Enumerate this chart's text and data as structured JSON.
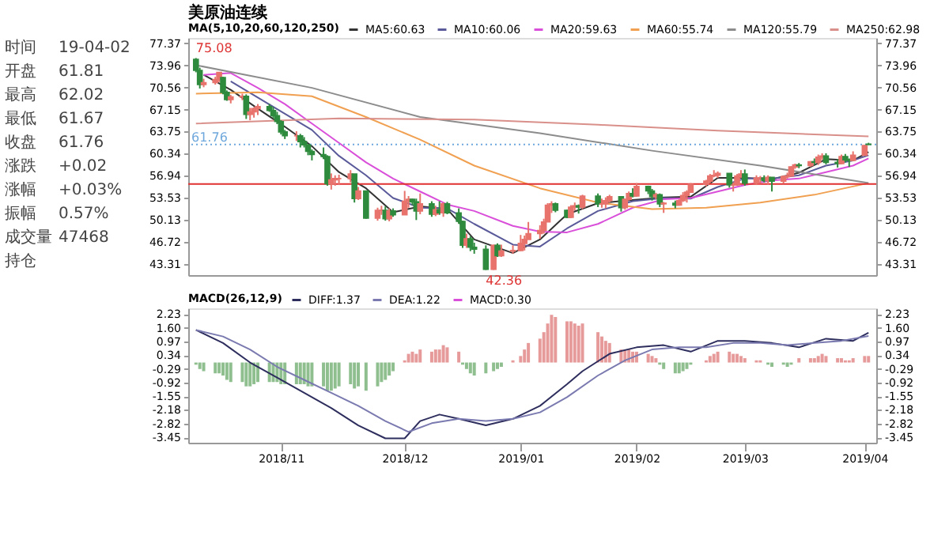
{
  "chart_data": [
    {
      "type": "candlestick",
      "title": "美原油连续",
      "legend_title": "MA(5,10,20,60,120,250)",
      "legend": "top",
      "tick_labels": "y",
      "x": [
        "2018-10-10",
        "2018-10-11",
        "2018-10-12",
        "2018-10-15",
        "2018-10-16",
        "2018-10-17",
        "2018-10-18",
        "2018-10-19",
        "2018-10-22",
        "2018-10-23",
        "2018-10-24",
        "2018-10-25",
        "2018-10-26",
        "2018-10-29",
        "2018-10-30",
        "2018-10-31",
        "2018-11-01",
        "2018-11-02",
        "2018-11-05",
        "2018-11-06",
        "2018-11-07",
        "2018-11-08",
        "2018-11-09",
        "2018-11-12",
        "2018-11-13",
        "2018-11-14",
        "2018-11-15",
        "2018-11-16",
        "2018-11-19",
        "2018-11-20",
        "2018-11-21",
        "2018-11-23",
        "2018-11-26",
        "2018-11-27",
        "2018-11-28",
        "2018-11-29",
        "2018-11-30",
        "2018-12-03",
        "2018-12-04",
        "2018-12-05",
        "2018-12-06",
        "2018-12-07",
        "2018-12-10",
        "2018-12-11",
        "2018-12-12",
        "2018-12-13",
        "2018-12-14",
        "2018-12-17",
        "2018-12-18",
        "2018-12-19",
        "2018-12-20",
        "2018-12-21",
        "2018-12-24",
        "2018-12-26",
        "2018-12-27",
        "2018-12-28",
        "2018-12-31",
        "2019-01-02",
        "2019-01-03",
        "2019-01-04",
        "2019-01-07",
        "2019-01-08",
        "2019-01-09",
        "2019-01-10",
        "2019-01-11",
        "2019-01-14",
        "2019-01-15",
        "2019-01-16",
        "2019-01-17",
        "2019-01-18",
        "2019-01-22",
        "2019-01-23",
        "2019-01-24",
        "2019-01-25",
        "2019-01-28",
        "2019-01-29",
        "2019-01-30",
        "2019-01-31",
        "2019-02-01",
        "2019-02-04",
        "2019-02-05",
        "2019-02-06",
        "2019-02-07",
        "2019-02-08",
        "2019-02-11",
        "2019-02-12",
        "2019-02-13",
        "2019-02-14",
        "2019-02-15",
        "2019-02-19",
        "2019-02-20",
        "2019-02-21",
        "2019-02-22",
        "2019-02-25",
        "2019-02-26",
        "2019-02-27",
        "2019-02-28",
        "2019-03-01",
        "2019-03-04",
        "2019-03-05",
        "2019-03-06",
        "2019-03-07",
        "2019-03-08",
        "2019-03-11",
        "2019-03-12",
        "2019-03-13",
        "2019-03-14",
        "2019-03-15",
        "2019-03-18",
        "2019-03-19",
        "2019-03-20",
        "2019-03-21",
        "2019-03-22",
        "2019-03-25",
        "2019-03-26",
        "2019-03-27",
        "2019-03-28",
        "2019-03-29",
        "2019-04-01",
        "2019-04-02"
      ],
      "ohlc": [
        [
          74.9,
          75.1,
          72.9,
          73.2
        ],
        [
          73.2,
          73.6,
          70.4,
          71.0
        ],
        [
          71.0,
          71.9,
          70.6,
          71.3
        ],
        [
          71.3,
          72.2,
          71.0,
          71.8
        ],
        [
          71.8,
          72.9,
          71.4,
          72.9
        ],
        [
          72.1,
          72.2,
          69.5,
          69.8
        ],
        [
          69.8,
          70.1,
          68.5,
          68.7
        ],
        [
          68.7,
          69.4,
          68.1,
          69.1
        ],
        [
          69.1,
          69.6,
          68.6,
          69.2
        ],
        [
          69.2,
          69.5,
          65.7,
          66.4
        ],
        [
          66.4,
          67.4,
          65.5,
          66.8
        ],
        [
          66.8,
          67.5,
          65.9,
          67.3
        ],
        [
          67.3,
          68.0,
          66.3,
          67.6
        ],
        [
          67.6,
          68.0,
          66.8,
          67.0
        ],
        [
          67.0,
          67.5,
          65.8,
          66.2
        ],
        [
          66.2,
          66.8,
          64.9,
          65.3
        ],
        [
          65.3,
          65.5,
          63.3,
          63.7
        ],
        [
          63.7,
          64.0,
          62.6,
          63.1
        ],
        [
          63.1,
          63.8,
          62.3,
          63.1
        ],
        [
          63.1,
          63.4,
          61.3,
          62.2
        ],
        [
          62.2,
          62.9,
          61.3,
          61.7
        ],
        [
          61.7,
          61.8,
          60.1,
          60.7
        ],
        [
          60.7,
          61.0,
          59.3,
          60.2
        ],
        [
          60.2,
          61.3,
          59.5,
          59.9
        ],
        [
          59.9,
          60.1,
          55.4,
          55.7
        ],
        [
          55.7,
          57.3,
          54.8,
          56.3
        ],
        [
          56.3,
          57.0,
          55.4,
          56.5
        ],
        [
          56.5,
          57.1,
          55.5,
          56.5
        ],
        [
          56.5,
          57.8,
          55.9,
          57.2
        ],
        [
          57.2,
          57.2,
          52.8,
          53.4
        ],
        [
          53.4,
          55.2,
          53.2,
          54.6
        ],
        [
          54.6,
          54.6,
          50.3,
          50.4
        ],
        [
          50.4,
          52.0,
          50.0,
          51.6
        ],
        [
          51.6,
          52.3,
          50.9,
          51.6
        ],
        [
          51.6,
          52.2,
          50.0,
          50.3
        ],
        [
          50.3,
          51.9,
          49.9,
          51.5
        ],
        [
          51.5,
          51.9,
          50.6,
          50.9
        ],
        [
          50.9,
          54.6,
          50.9,
          53.0
        ],
        [
          53.0,
          53.8,
          52.0,
          53.3
        ],
        [
          53.3,
          53.4,
          52.4,
          52.9
        ],
        [
          52.9,
          53.4,
          50.1,
          51.5
        ],
        [
          51.5,
          54.2,
          51.0,
          52.6
        ],
        [
          52.6,
          53.0,
          50.6,
          51.0
        ],
        [
          51.0,
          52.3,
          50.7,
          51.7
        ],
        [
          51.7,
          53.0,
          50.9,
          51.2
        ],
        [
          51.2,
          52.8,
          50.6,
          52.6
        ],
        [
          52.6,
          52.9,
          51.0,
          51.2
        ],
        [
          51.2,
          51.9,
          49.5,
          49.9
        ],
        [
          49.9,
          50.0,
          45.8,
          46.2
        ],
        [
          46.2,
          48.0,
          45.8,
          47.2
        ],
        [
          47.2,
          47.6,
          45.3,
          45.9
        ],
        [
          45.9,
          46.6,
          44.9,
          45.6
        ],
        [
          45.6,
          46.2,
          42.4,
          42.5
        ],
        [
          42.5,
          46.3,
          42.4,
          46.2
        ],
        [
          46.2,
          46.5,
          44.4,
          44.6
        ],
        [
          44.6,
          46.3,
          44.4,
          45.3
        ],
        [
          45.3,
          46.2,
          44.9,
          45.4
        ],
        [
          45.4,
          47.8,
          45.3,
          46.5
        ],
        [
          46.5,
          47.7,
          45.4,
          47.1
        ],
        [
          47.1,
          49.8,
          47.1,
          48.0
        ],
        [
          48.0,
          49.3,
          47.2,
          48.5
        ],
        [
          48.5,
          50.3,
          48.0,
          49.8
        ],
        [
          49.8,
          52.7,
          49.8,
          52.4
        ],
        [
          52.4,
          53.0,
          51.2,
          52.6
        ],
        [
          52.6,
          52.8,
          51.3,
          51.6
        ],
        [
          51.6,
          51.7,
          50.4,
          50.5
        ],
        [
          50.5,
          52.4,
          50.4,
          52.1
        ],
        [
          52.1,
          52.8,
          51.6,
          52.3
        ],
        [
          52.3,
          52.5,
          51.1,
          52.1
        ],
        [
          52.1,
          54.0,
          51.8,
          53.8
        ],
        [
          53.8,
          54.2,
          52.1,
          52.6
        ],
        [
          52.6,
          53.4,
          52.0,
          52.6
        ],
        [
          52.6,
          53.6,
          51.9,
          53.1
        ],
        [
          53.1,
          54.0,
          52.8,
          53.7
        ],
        [
          53.7,
          53.8,
          51.4,
          52.0
        ],
        [
          52.0,
          53.4,
          51.7,
          53.3
        ],
        [
          53.3,
          54.5,
          53.1,
          54.2
        ],
        [
          54.2,
          55.0,
          53.6,
          53.8
        ],
        [
          53.8,
          55.8,
          53.7,
          55.3
        ],
        [
          55.3,
          55.4,
          54.1,
          54.6
        ],
        [
          54.6,
          54.9,
          53.1,
          53.7
        ],
        [
          53.7,
          54.3,
          53.3,
          54.0
        ],
        [
          54.0,
          54.2,
          52.1,
          52.6
        ],
        [
          52.6,
          52.9,
          51.2,
          52.7
        ],
        [
          52.7,
          53.1,
          51.9,
          52.4
        ],
        [
          52.4,
          53.3,
          52.3,
          53.1
        ],
        [
          53.1,
          54.4,
          52.9,
          53.9
        ],
        [
          53.9,
          54.7,
          52.8,
          54.4
        ],
        [
          54.4,
          55.8,
          54.3,
          55.6
        ],
        [
          55.6,
          56.3,
          55.3,
          56.1
        ],
        [
          56.1,
          57.2,
          55.8,
          56.9
        ],
        [
          56.9,
          57.8,
          56.7,
          57.0
        ],
        [
          57.0,
          57.6,
          56.6,
          57.3
        ],
        [
          57.3,
          57.3,
          55.1,
          55.5
        ],
        [
          55.5,
          55.9,
          54.5,
          55.5
        ],
        [
          55.5,
          57.2,
          55.4,
          56.9
        ],
        [
          56.9,
          57.8,
          56.6,
          57.2
        ],
        [
          57.2,
          57.9,
          55.4,
          55.8
        ],
        [
          55.8,
          57.0,
          55.5,
          56.6
        ],
        [
          56.6,
          56.9,
          55.7,
          56.6
        ],
        [
          56.6,
          57.0,
          55.9,
          56.2
        ],
        [
          56.2,
          57.0,
          55.6,
          56.7
        ],
        [
          56.7,
          56.7,
          54.5,
          56.1
        ],
        [
          56.1,
          57.0,
          55.7,
          56.8
        ],
        [
          56.8,
          57.4,
          56.5,
          56.9
        ],
        [
          56.9,
          58.4,
          56.8,
          58.3
        ],
        [
          58.3,
          58.8,
          58.0,
          58.6
        ],
        [
          58.6,
          58.9,
          58.1,
          58.5
        ],
        [
          58.5,
          59.2,
          58.3,
          59.1
        ],
        [
          59.1,
          59.6,
          58.6,
          59.0
        ],
        [
          59.0,
          60.2,
          58.6,
          59.8
        ],
        [
          59.8,
          60.4,
          59.4,
          60.0
        ],
        [
          60.0,
          60.4,
          58.7,
          59.0
        ],
        [
          59.0,
          59.5,
          58.2,
          58.8
        ],
        [
          58.8,
          60.2,
          58.7,
          59.9
        ],
        [
          59.9,
          60.3,
          59.0,
          59.4
        ],
        [
          59.4,
          59.6,
          58.3,
          59.3
        ],
        [
          59.3,
          60.7,
          59.2,
          60.1
        ],
        [
          60.1,
          61.7,
          60.1,
          61.6
        ],
        [
          61.81,
          62.02,
          61.67,
          61.76
        ]
      ],
      "colors": [
        "#2e8b3e",
        "#2e8b3e",
        "#e8736c",
        "#e8736c",
        "#e8736c",
        "#2e8b3e",
        "#2e8b3e",
        "#e8736c",
        "#e8736c",
        "#2e8b3e",
        "#e8736c",
        "#e8736c",
        "#e8736c",
        "#2e8b3e",
        "#2e8b3e",
        "#2e8b3e",
        "#2e8b3e",
        "#2e8b3e",
        "#e8736c",
        "#2e8b3e",
        "#2e8b3e",
        "#2e8b3e",
        "#2e8b3e",
        "#2e8b3e",
        "#2e8b3e",
        "#e8736c",
        "#e8736c",
        "#e8736c",
        "#e8736c",
        "#2e8b3e",
        "#e8736c",
        "#2e8b3e",
        "#e8736c",
        "#e8736c",
        "#2e8b3e",
        "#e8736c",
        "#2e8b3e",
        "#e8736c",
        "#e8736c",
        "#2e8b3e",
        "#2e8b3e",
        "#e8736c",
        "#2e8b3e",
        "#e8736c",
        "#2e8b3e",
        "#e8736c",
        "#2e8b3e",
        "#2e8b3e",
        "#2e8b3e",
        "#e8736c",
        "#2e8b3e",
        "#2e8b3e",
        "#2e8b3e",
        "#e8736c",
        "#2e8b3e",
        "#e8736c",
        "#e8736c",
        "#e8736c",
        "#e8736c",
        "#e8736c",
        "#e8736c",
        "#e8736c",
        "#e8736c",
        "#e8736c",
        "#2e8b3e",
        "#2e8b3e",
        "#e8736c",
        "#e8736c",
        "#2e8b3e",
        "#e8736c",
        "#2e8b3e",
        "#e8736c",
        "#e8736c",
        "#e8736c",
        "#2e8b3e",
        "#e8736c",
        "#e8736c",
        "#2e8b3e",
        "#e8736c",
        "#2e8b3e",
        "#2e8b3e",
        "#e8736c",
        "#2e8b3e",
        "#e8736c",
        "#2e8b3e",
        "#e8736c",
        "#e8736c",
        "#e8736c",
        "#e8736c",
        "#e8736c",
        "#e8736c",
        "#e8736c",
        "#e8736c",
        "#2e8b3e",
        "#e8736c",
        "#e8736c",
        "#e8736c",
        "#2e8b3e",
        "#e8736c",
        "#e8736c",
        "#2e8b3e",
        "#e8736c",
        "#2e8b3e",
        "#e8736c",
        "#e8736c",
        "#e8736c",
        "#e8736c",
        "#2e8b3e",
        "#e8736c",
        "#2e8b3e",
        "#e8736c",
        "#e8736c",
        "#2e8b3e",
        "#2e8b3e",
        "#e8736c",
        "#2e8b3e",
        "#2e8b3e",
        "#e8736c",
        "#e8736c",
        "#2e8b3e"
      ],
      "series": [
        {
          "name": "MA5:60.63",
          "type": "line",
          "color": "#333333",
          "x": [
            "2018-10-12",
            "2018-10-19",
            "2018-10-26",
            "2018-11-02",
            "2018-11-09",
            "2018-11-16",
            "2018-11-23",
            "2018-11-30",
            "2018-12-07",
            "2018-12-14",
            "2018-12-21",
            "2018-12-31",
            "2019-01-07",
            "2019-01-14",
            "2019-01-22",
            "2019-01-31",
            "2019-02-08",
            "2019-02-15",
            "2019-02-22",
            "2019-03-01",
            "2019-03-08",
            "2019-03-15",
            "2019-03-22",
            "2019-03-29",
            "2019-04-02"
          ],
          "values": [
            72.5,
            70.2,
            67.3,
            64.5,
            61.5,
            57.5,
            55.0,
            51.3,
            52.2,
            51.8,
            47.1,
            45.0,
            47.1,
            51.0,
            52.7,
            53.2,
            53.6,
            53.7,
            56.6,
            56.6,
            56.4,
            57.4,
            59.5,
            59.3,
            60.6
          ]
        },
        {
          "name": "MA10:60.06",
          "type": "line",
          "color": "#5a5a9a",
          "x": [
            "2018-10-19",
            "2018-10-26",
            "2018-11-02",
            "2018-11-09",
            "2018-11-16",
            "2018-11-23",
            "2018-11-30",
            "2018-12-07",
            "2018-12-14",
            "2018-12-21",
            "2018-12-31",
            "2019-01-07",
            "2019-01-14",
            "2019-01-22",
            "2019-01-31",
            "2019-02-08",
            "2019-02-15",
            "2019-02-22",
            "2019-03-01",
            "2019-03-08",
            "2019-03-15",
            "2019-03-22",
            "2019-03-29",
            "2019-04-02"
          ],
          "values": [
            71.5,
            69.0,
            66.5,
            64.0,
            60.0,
            57.0,
            53.5,
            52.0,
            51.9,
            49.5,
            46.3,
            46.0,
            48.8,
            51.5,
            53.0,
            53.5,
            53.4,
            55.2,
            56.5,
            56.5,
            57.0,
            58.5,
            59.3,
            60.1
          ]
        },
        {
          "name": "MA20:59.63",
          "type": "line",
          "color": "#d94fd9",
          "x": [
            "2018-10-12",
            "2018-10-19",
            "2018-10-26",
            "2018-11-02",
            "2018-11-09",
            "2018-11-16",
            "2018-11-23",
            "2018-11-30",
            "2018-12-07",
            "2018-12-14",
            "2018-12-21",
            "2018-12-31",
            "2019-01-07",
            "2019-01-14",
            "2019-01-22",
            "2019-01-31",
            "2019-02-08",
            "2019-02-15",
            "2019-02-22",
            "2019-03-01",
            "2019-03-08",
            "2019-03-15",
            "2019-03-22",
            "2019-03-29",
            "2019-04-02"
          ],
          "values": [
            72.5,
            72.8,
            70.5,
            68.0,
            65.0,
            62.0,
            59.0,
            56.5,
            54.5,
            52.5,
            51.5,
            49.2,
            48.3,
            48.2,
            49.5,
            52.0,
            53.3,
            53.5,
            54.5,
            55.5,
            56.2,
            56.5,
            57.5,
            58.5,
            59.6
          ]
        },
        {
          "name": "MA60:55.74",
          "type": "line",
          "color": "#f0a050",
          "x": [
            "2018-10-10",
            "2018-10-26",
            "2018-11-09",
            "2018-11-23",
            "2018-12-07",
            "2018-12-21",
            "2019-01-07",
            "2019-01-22",
            "2019-02-05",
            "2019-02-19",
            "2019-03-05",
            "2019-03-19",
            "2019-04-02"
          ],
          "values": [
            69.6,
            69.8,
            69.2,
            66.0,
            62.5,
            58.5,
            55.0,
            52.8,
            51.8,
            52.0,
            52.8,
            54.0,
            55.8
          ]
        },
        {
          "name": "MA120:55.79",
          "type": "line",
          "color": "#8c8c8c",
          "x": [
            "2018-10-10",
            "2018-11-09",
            "2018-12-07",
            "2019-01-07",
            "2019-02-05",
            "2019-03-05",
            "2019-04-02"
          ],
          "values": [
            74.0,
            70.5,
            66.0,
            63.5,
            60.8,
            58.5,
            55.8
          ]
        },
        {
          "name": "MA250:62.98",
          "type": "line",
          "color": "#d9908a",
          "x": [
            "2018-10-10",
            "2018-11-16",
            "2018-12-21",
            "2019-01-22",
            "2019-02-22",
            "2019-04-02"
          ],
          "values": [
            65.0,
            65.8,
            65.6,
            64.8,
            63.9,
            63.0
          ]
        }
      ],
      "xlim": [
        "2018-10-08",
        "2019-04-04"
      ],
      "ylim": [
        41.6,
        78.2
      ],
      "yticks": [
        43.31,
        46.72,
        50.13,
        53.53,
        56.94,
        60.34,
        63.75,
        67.15,
        70.56,
        73.96,
        77.37
      ],
      "y2lim": [
        41.6,
        78.2
      ],
      "y2ticks": [
        43.31,
        46.72,
        50.13,
        53.53,
        56.94,
        60.34,
        63.75,
        67.15,
        70.56,
        73.96,
        77.37
      ],
      "ref_lines": [
        {
          "axis": "y",
          "value": 55.66,
          "color": "#e03030",
          "line_style": "solid"
        },
        {
          "axis": "y",
          "value": 61.76,
          "label": "61.76",
          "color": "#6fa8dc",
          "line_style": "dotted"
        }
      ],
      "annotations": [
        "时间",
        "19-04-02",
        "开盘",
        "61.81",
        "最高",
        "62.02",
        "最低",
        "61.67",
        "收盘",
        "61.76",
        "涨跌",
        "+0.02",
        "涨幅",
        "+0.03%",
        "振幅",
        "0.57%",
        "成交量",
        "47468",
        "持仓",
        {
          "text": "75.08",
          "x": "2018-10-10",
          "y": 75.08
        },
        {
          "text": "42.36",
          "x": "2018-12-24",
          "y": 42.36
        }
      ]
    },
    {
      "type": "bar",
      "legend_title": "MACD(26,12,9)",
      "legend": "top",
      "x": [
        "2018-10-10",
        "2018-10-11",
        "2018-10-12",
        "2018-10-15",
        "2018-10-16",
        "2018-10-17",
        "2018-10-18",
        "2018-10-19",
        "2018-10-22",
        "2018-10-23",
        "2018-10-24",
        "2018-10-25",
        "2018-10-26",
        "2018-10-29",
        "2018-10-30",
        "2018-10-31",
        "2018-11-01",
        "2018-11-02",
        "2018-11-05",
        "2018-11-06",
        "2018-11-07",
        "2018-11-08",
        "2018-11-09",
        "2018-11-12",
        "2018-11-13",
        "2018-11-14",
        "2018-11-15",
        "2018-11-16",
        "2018-11-19",
        "2018-11-20",
        "2018-11-21",
        "2018-11-23",
        "2018-11-26",
        "2018-11-27",
        "2018-11-28",
        "2018-11-29",
        "2018-11-30",
        "2018-12-03",
        "2018-12-04",
        "2018-12-05",
        "2018-12-06",
        "2018-12-07",
        "2018-12-10",
        "2018-12-11",
        "2018-12-12",
        "2018-12-13",
        "2018-12-14",
        "2018-12-17",
        "2018-12-18",
        "2018-12-19",
        "2018-12-20",
        "2018-12-21",
        "2018-12-24",
        "2018-12-26",
        "2018-12-27",
        "2018-12-28",
        "2018-12-31",
        "2019-01-02",
        "2019-01-03",
        "2019-01-04",
        "2019-01-07",
        "2019-01-08",
        "2019-01-09",
        "2019-01-10",
        "2019-01-11",
        "2019-01-14",
        "2019-01-15",
        "2019-01-16",
        "2019-01-17",
        "2019-01-18",
        "2019-01-22",
        "2019-01-23",
        "2019-01-24",
        "2019-01-25",
        "2019-01-28",
        "2019-01-29",
        "2019-01-30",
        "2019-01-31",
        "2019-02-01",
        "2019-02-04",
        "2019-02-05",
        "2019-02-06",
        "2019-02-07",
        "2019-02-08",
        "2019-02-11",
        "2019-02-12",
        "2019-02-13",
        "2019-02-14",
        "2019-02-15",
        "2019-02-19",
        "2019-02-20",
        "2019-02-21",
        "2019-02-22",
        "2019-02-25",
        "2019-02-26",
        "2019-02-27",
        "2019-02-28",
        "2019-03-01",
        "2019-03-04",
        "2019-03-05",
        "2019-03-06",
        "2019-03-07",
        "2019-03-08",
        "2019-03-11",
        "2019-03-12",
        "2019-03-13",
        "2019-03-14",
        "2019-03-15",
        "2019-03-18",
        "2019-03-19",
        "2019-03-20",
        "2019-03-21",
        "2019-03-22",
        "2019-03-25",
        "2019-03-26",
        "2019-03-27",
        "2019-03-28",
        "2019-03-29",
        "2019-04-01",
        "2019-04-02"
      ],
      "series": [
        {
          "name": "DIFF:1.37",
          "type": "line",
          "color": "#2e2e5e",
          "x": [
            "2018-10-10",
            "2018-10-17",
            "2018-10-24",
            "2018-10-31",
            "2018-11-07",
            "2018-11-14",
            "2018-11-21",
            "2018-11-28",
            "2018-12-03",
            "2018-12-07",
            "2018-12-12",
            "2018-12-17",
            "2018-12-24",
            "2018-12-31",
            "2019-01-07",
            "2019-01-14",
            "2019-01-18",
            "2019-01-25",
            "2019-02-01",
            "2019-02-08",
            "2019-02-15",
            "2019-02-22",
            "2019-03-01",
            "2019-03-08",
            "2019-03-15",
            "2019-03-22",
            "2019-03-29",
            "2019-04-02"
          ],
          "values": [
            1.5,
            0.9,
            0.0,
            -0.7,
            -1.4,
            -2.1,
            -2.9,
            -3.5,
            -3.5,
            -2.7,
            -2.4,
            -2.6,
            -2.9,
            -2.6,
            -2.0,
            -1.0,
            -0.4,
            0.4,
            0.7,
            0.8,
            0.5,
            1.0,
            1.0,
            0.9,
            0.7,
            1.1,
            1.0,
            1.37
          ]
        },
        {
          "name": "DEA:1.22",
          "type": "line",
          "color": "#7a7ab0",
          "x": [
            "2018-10-10",
            "2018-10-17",
            "2018-10-24",
            "2018-10-31",
            "2018-11-07",
            "2018-11-14",
            "2018-11-21",
            "2018-11-28",
            "2018-12-04",
            "2018-12-10",
            "2018-12-17",
            "2018-12-24",
            "2018-12-31",
            "2019-01-07",
            "2019-01-14",
            "2019-01-22",
            "2019-01-29",
            "2019-02-05",
            "2019-02-12",
            "2019-02-19",
            "2019-02-26",
            "2019-03-05",
            "2019-03-12",
            "2019-03-19",
            "2019-03-26",
            "2019-04-02"
          ],
          "values": [
            1.5,
            1.2,
            0.6,
            -0.2,
            -0.8,
            -1.4,
            -2.0,
            -2.7,
            -3.2,
            -2.8,
            -2.6,
            -2.7,
            -2.6,
            -2.3,
            -1.6,
            -0.6,
            0.1,
            0.6,
            0.7,
            0.7,
            0.9,
            0.9,
            0.8,
            0.9,
            1.0,
            1.22
          ]
        },
        {
          "name": "MACD:0.30",
          "type": "bar",
          "color": "#d94fd9",
          "values": [
            -0.1,
            -0.3,
            -0.4,
            -0.5,
            -0.5,
            -0.6,
            -0.8,
            -0.9,
            -0.9,
            -1.1,
            -1.1,
            -1.0,
            -0.9,
            -0.9,
            -0.9,
            -0.9,
            -1.0,
            -1.0,
            -1.0,
            -1.0,
            -1.0,
            -1.1,
            -1.1,
            -1.1,
            -1.3,
            -1.3,
            -1.2,
            -1.1,
            -1.0,
            -1.2,
            -1.1,
            -1.3,
            -1.1,
            -0.9,
            -0.8,
            -0.6,
            -0.4,
            0.1,
            0.4,
            0.5,
            0.4,
            0.6,
            0.5,
            0.6,
            0.6,
            0.8,
            0.7,
            0.5,
            -0.1,
            -0.3,
            -0.5,
            -0.6,
            -0.5,
            -0.4,
            -0.3,
            -0.2,
            0.1,
            0.3,
            0.6,
            0.9,
            1.1,
            1.4,
            1.8,
            2.2,
            2.1,
            1.9,
            1.9,
            1.8,
            1.7,
            1.8,
            1.4,
            1.2,
            1.0,
            0.9,
            0.6,
            0.6,
            0.6,
            0.5,
            0.5,
            0.4,
            0.3,
            0.2,
            -0.1,
            -0.3,
            -0.5,
            -0.5,
            -0.4,
            -0.3,
            -0.1,
            0.1,
            0.3,
            0.4,
            0.5,
            0.5,
            0.4,
            0.4,
            0.3,
            0.2,
            0.1,
            0.1,
            0.0,
            -0.1,
            -0.2,
            -0.1,
            -0.2,
            -0.1,
            0.0,
            0.2,
            0.2,
            0.2,
            0.3,
            0.4,
            0.3,
            0.2,
            0.2,
            0.1,
            0.1,
            0.2,
            0.3,
            0.3
          ],
          "colors": [
            "#8fbf8f",
            "#8fbf8f",
            "#8fbf8f",
            "#8fbf8f",
            "#8fbf8f",
            "#8fbf8f",
            "#8fbf8f",
            "#8fbf8f",
            "#8fbf8f",
            "#8fbf8f",
            "#8fbf8f",
            "#8fbf8f",
            "#8fbf8f",
            "#8fbf8f",
            "#8fbf8f",
            "#8fbf8f",
            "#8fbf8f",
            "#8fbf8f",
            "#8fbf8f",
            "#8fbf8f",
            "#8fbf8f",
            "#8fbf8f",
            "#8fbf8f",
            "#8fbf8f",
            "#8fbf8f",
            "#8fbf8f",
            "#8fbf8f",
            "#8fbf8f",
            "#8fbf8f",
            "#8fbf8f",
            "#8fbf8f",
            "#8fbf8f",
            "#8fbf8f",
            "#8fbf8f",
            "#8fbf8f",
            "#8fbf8f",
            "#8fbf8f",
            "#e69a9a",
            "#e69a9a",
            "#e69a9a",
            "#e69a9a",
            "#e69a9a",
            "#e69a9a",
            "#e69a9a",
            "#e69a9a",
            "#e69a9a",
            "#e69a9a",
            "#e69a9a",
            "#8fbf8f",
            "#8fbf8f",
            "#8fbf8f",
            "#8fbf8f",
            "#8fbf8f",
            "#8fbf8f",
            "#8fbf8f",
            "#8fbf8f",
            "#e69a9a",
            "#e69a9a",
            "#e69a9a",
            "#e69a9a",
            "#e69a9a",
            "#e69a9a",
            "#e69a9a",
            "#e69a9a",
            "#e69a9a",
            "#e69a9a",
            "#e69a9a",
            "#e69a9a",
            "#e69a9a",
            "#e69a9a",
            "#e69a9a",
            "#e69a9a",
            "#e69a9a",
            "#e69a9a",
            "#e69a9a",
            "#e69a9a",
            "#e69a9a",
            "#e69a9a",
            "#e69a9a",
            "#e69a9a",
            "#e69a9a",
            "#e69a9a",
            "#8fbf8f",
            "#8fbf8f",
            "#8fbf8f",
            "#8fbf8f",
            "#8fbf8f",
            "#8fbf8f",
            "#8fbf8f",
            "#e69a9a",
            "#e69a9a",
            "#e69a9a",
            "#e69a9a",
            "#e69a9a",
            "#e69a9a",
            "#e69a9a",
            "#e69a9a",
            "#e69a9a",
            "#e69a9a",
            "#e69a9a",
            "#e69a9a",
            "#8fbf8f",
            "#8fbf8f",
            "#8fbf8f",
            "#8fbf8f",
            "#8fbf8f",
            "#e69a9a",
            "#e69a9a",
            "#e69a9a",
            "#e69a9a",
            "#e69a9a",
            "#e69a9a",
            "#e69a9a",
            "#e69a9a",
            "#e69a9a",
            "#e69a9a",
            "#e69a9a",
            "#e69a9a",
            "#e69a9a",
            "#e69a9a"
          ]
        }
      ],
      "xlim": [
        "2018-10-08",
        "2019-04-04"
      ],
      "xticks": [
        {
          "value": "2018-11-01",
          "label": "2018/11"
        },
        {
          "value": "2018-12-03",
          "label": "2018/12"
        },
        {
          "value": "2019-01-02",
          "label": "2019/01"
        },
        {
          "value": "2019-02-01",
          "label": "2019/02"
        },
        {
          "value": "2019-03-01",
          "label": "2019/03"
        },
        {
          "value": "2019-04-01",
          "label": "2019/04"
        }
      ],
      "ylim": [
        -3.7,
        2.5
      ],
      "yticks": [
        2.23,
        {
          "value": 1.6,
          "label": "1.60"
        },
        0.97,
        0.34,
        -0.29,
        -0.92,
        -1.55,
        -2.18,
        -2.82,
        -3.45
      ],
      "y2lim": [
        -3.7,
        2.5
      ],
      "y2ticks": [
        2.23,
        {
          "value": 1.6,
          "label": "1.60"
        },
        0.97,
        0.34,
        -0.29,
        -0.92,
        -1.55,
        -2.18,
        -2.82,
        -3.45
      ]
    }
  ]
}
